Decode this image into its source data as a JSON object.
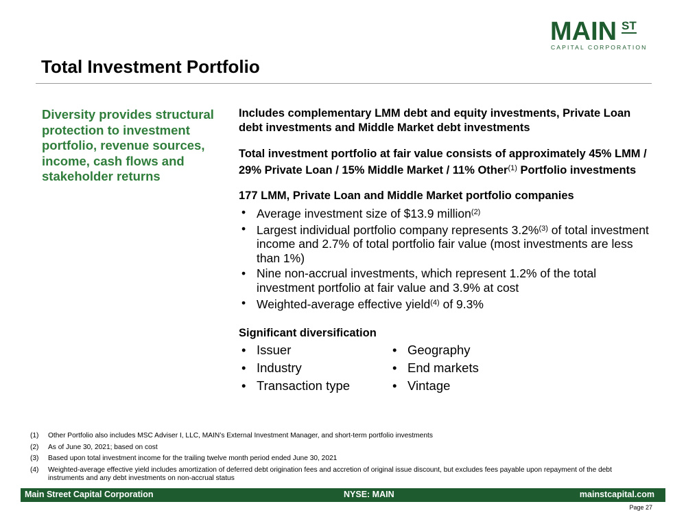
{
  "logo": {
    "main": "MAIN",
    "st": "ST",
    "sub": "CAPITAL CORPORATION"
  },
  "title": "Total Investment Portfolio",
  "left_text": "Diversity provides structural protection to investment portfolio, revenue sources, income, cash flows and stakeholder returns",
  "right": {
    "para1": "Includes complementary LMM debt and equity investments, Private Loan debt investments and Middle Market debt investments",
    "para2_main": "Total investment portfolio at fair value consists of approximately 45% LMM / 29% Private Loan / 15% Middle Market / 11% Other",
    "para2_sup": "(1)",
    "para2_tail": " Portfolio investments",
    "companies_heading": "177 LMM, Private Loan and Middle Market portfolio companies",
    "bullets": [
      {
        "pre": "Average investment size of $13.9 million",
        "sup": "(2)",
        "post": ""
      },
      {
        "pre": "Largest individual portfolio company represents 3.2%",
        "sup": "(3)",
        "post": " of total investment income and 2.7% of total portfolio fair value (most investments are less than 1%)"
      },
      {
        "pre": "Nine non-accrual investments, which represent 1.2% of the total investment portfolio at fair value and 3.9% at cost",
        "sup": "",
        "post": ""
      },
      {
        "pre": "Weighted-average effective yield",
        "sup": "(4)",
        "post": " of 9.3%"
      }
    ],
    "diversification_heading": "Significant diversification",
    "diversification": [
      "Issuer",
      "Geography",
      "Industry",
      "End markets",
      "Transaction type",
      "Vintage"
    ]
  },
  "bullet_char": "•",
  "footnotes": [
    {
      "num": "(1)",
      "text": "Other Portfolio also includes MSC Adviser I, LLC, MAIN’s External Investment Manager, and short-term portfolio investments"
    },
    {
      "num": "(2)",
      "text": "As of June 30, 2021; based on cost"
    },
    {
      "num": "(3)",
      "text": "Based upon total investment income for the trailing twelve month period ended June 30, 2021"
    },
    {
      "num": "(4)",
      "text": "Weighted-average effective yield includes amortization of deferred debt origination fees and accretion of original issue discount, but excludes fees payable upon repayment of the debt instruments and any debt investments on non-accrual status"
    }
  ],
  "footer": {
    "left": "Main Street Capital Corporation",
    "center": "NYSE: MAIN",
    "right": "mainstcapital.com"
  },
  "page_label": "Page  27",
  "colors": {
    "brand_green": "#1e5c2f",
    "accent_green": "#2f7d3a"
  }
}
